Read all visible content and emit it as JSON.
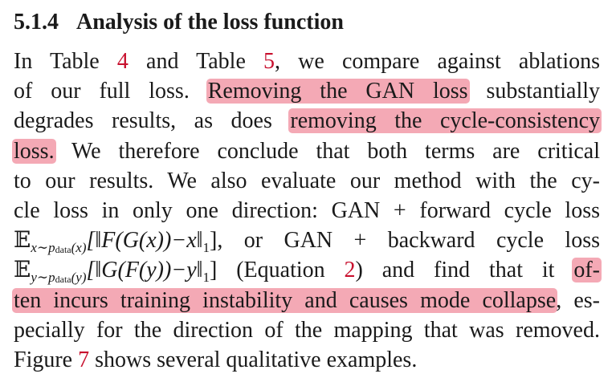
{
  "heading": {
    "number": "5.1.4",
    "title": "Analysis of the loss function"
  },
  "refs": {
    "table_a": "4",
    "table_b": "5",
    "equation": "2",
    "figure": "7"
  },
  "lines": {
    "l1_a": "In Table ",
    "l1_b": " and Table ",
    "l1_c": ", we compare against ablations",
    "l2_a": "of our full loss.",
    "l2_hl": "Removing the GAN loss",
    "l2_b": "substantially",
    "l3_a": "degrades results, as does",
    "l3_hl": "removing the cycle-consistency",
    "l4_hl": "loss.",
    "l4_b": "We therefore conclude that both terms are critical",
    "l5": "to our results. We also evaluate our method with the cy-",
    "l6": "cle loss in only one direction: GAN + forward cycle loss",
    "l7_b": ", or GAN + backward cycle loss",
    "l8_b": " (Equation ",
    "l8_c": ") and find that it",
    "l8_hl": "of-",
    "l9_hl": "ten incurs training instability and causes mode collapse",
    "l9_b": ", es-",
    "l10": "pecially for the direction of the mapping that was removed.",
    "l11_a": "Figure ",
    "l11_b": " shows several qualitative examples."
  },
  "math": {
    "E": "𝔼",
    "forward_sub_pre": "x∼p",
    "forward_sub_data": "data",
    "forward_sub_post": "(x)",
    "forward_body": "[‖F(G(x))−x‖",
    "backward_sub_pre": "y∼p",
    "backward_sub_data": "data",
    "backward_sub_post": "(y)",
    "backward_body": "[‖G(F(y))−y‖",
    "norm_sub": "1",
    "close": "]"
  },
  "colors": {
    "highlight": "#f4a9b5",
    "reference": "#c8102e",
    "text": "#1a1a1a"
  }
}
